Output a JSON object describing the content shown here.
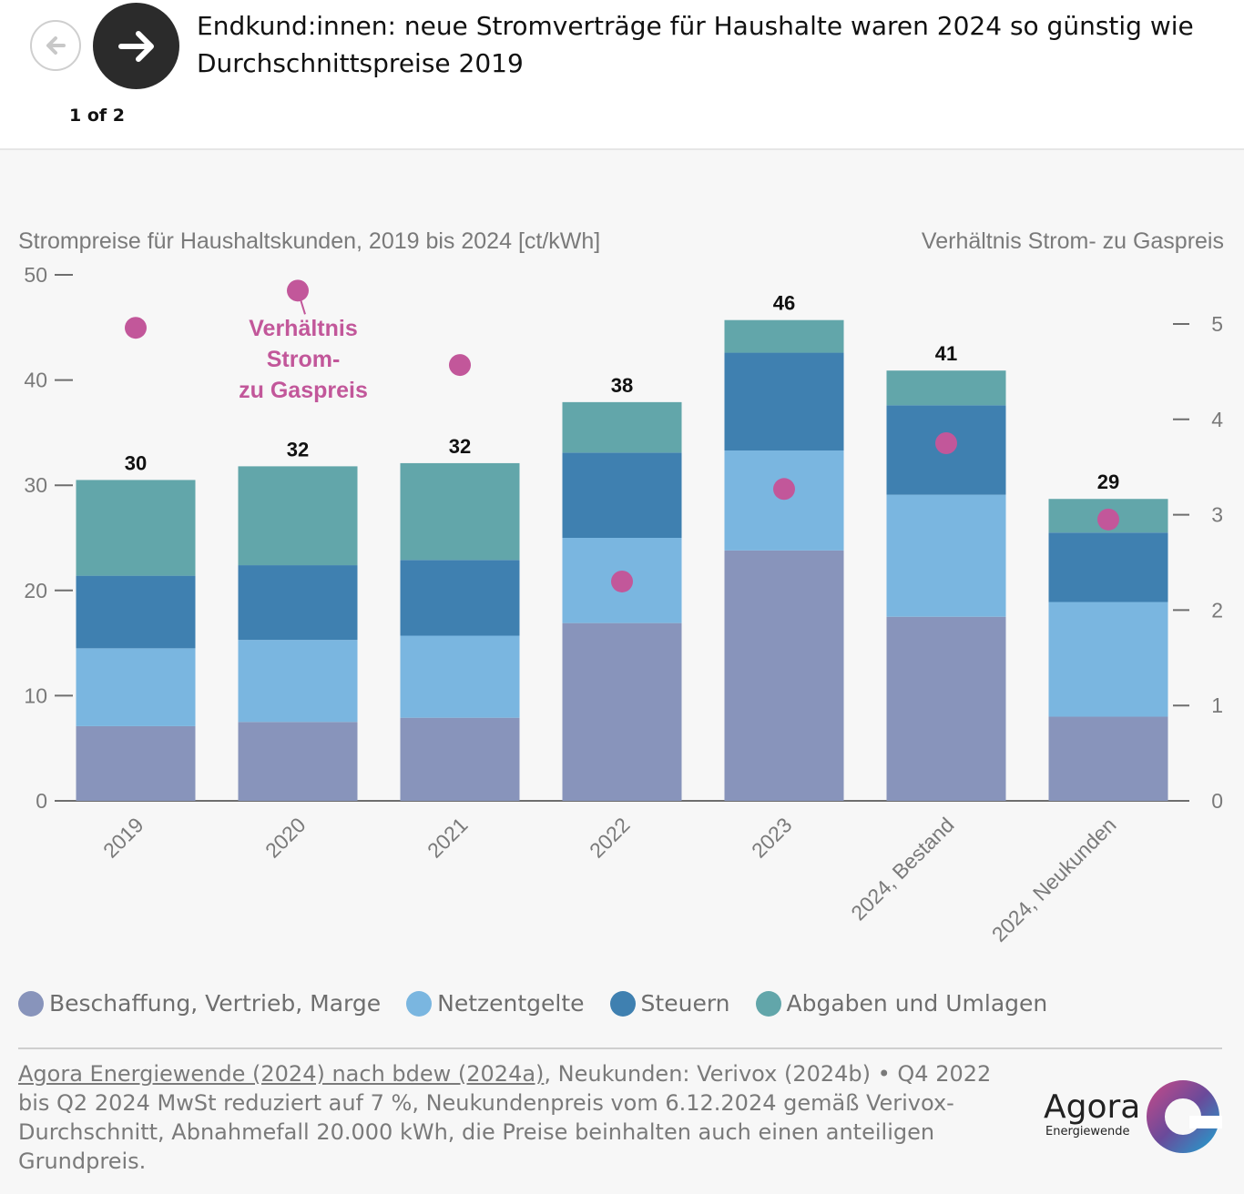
{
  "header": {
    "title": "Endkund:innen: neue Stromverträge für Haushalte waren 2024 so günstig wie Durchschnittspreise 2019",
    "pager": "1 of 2"
  },
  "chart_data": {
    "type": "bar",
    "stacked": true,
    "left_axis_title": "Strompreise für Haushaltskunden, 2019 bis 2024 [ct/kWh]",
    "right_axis_title": "Verhältnis Strom- zu Gaspreis",
    "ylim": [
      0,
      50
    ],
    "y_ticks": [
      0,
      10,
      20,
      30,
      40,
      50
    ],
    "y2lim": [
      0,
      5.5
    ],
    "y2_ticks": [
      0,
      1,
      2,
      3,
      4,
      5
    ],
    "categories": [
      "2019",
      "2020",
      "2021",
      "2022",
      "2023",
      "2024, Bestand",
      "2024, Neukunden"
    ],
    "series": [
      {
        "name": "Beschaffung, Vertrieb, Marge",
        "color": "#8894bb",
        "values": [
          7.1,
          7.5,
          7.9,
          16.9,
          23.8,
          17.5,
          8.0
        ]
      },
      {
        "name": "Netzentgelte",
        "color": "#7ab6e0",
        "values": [
          7.4,
          7.8,
          7.8,
          8.1,
          9.5,
          11.6,
          10.9
        ]
      },
      {
        "name": "Steuern",
        "color": "#3f80b0",
        "values": [
          6.9,
          7.1,
          7.2,
          8.1,
          9.3,
          8.5,
          6.6
        ]
      },
      {
        "name": "Abgaben und Umlagen",
        "color": "#62a6aa",
        "values": [
          9.1,
          9.4,
          9.2,
          4.8,
          3.1,
          3.3,
          3.2
        ]
      }
    ],
    "totals": [
      "30",
      "32",
      "32",
      "38",
      "46",
      "41",
      "29"
    ],
    "ratio": {
      "label_lines": [
        "Verhältnis",
        "Strom-",
        "zu Gaspreis"
      ],
      "color": "#c2579a",
      "values": [
        4.96,
        5.35,
        4.57,
        2.3,
        3.27,
        3.75,
        2.95
      ]
    },
    "axis_color": "#6e6e6e",
    "grid": false,
    "legend_position": "bottom-left"
  },
  "footer": {
    "source_link": "Agora Energiewende (2024) nach bdew (2024a)",
    "source_text": ", Neukunden: Verivox (2024b) • Q4 2022 bis Q2 2024 MwSt reduziert auf 7 %, Neukundenpreis vom 6.12.2024 gemäß Verivox-Durchschnitt, Abnahmefall 20.000 kWh, die Preise beinhalten auch einen anteiligen Grundpreis.",
    "logo_word": "Agora",
    "logo_sub": "Energiewende"
  }
}
